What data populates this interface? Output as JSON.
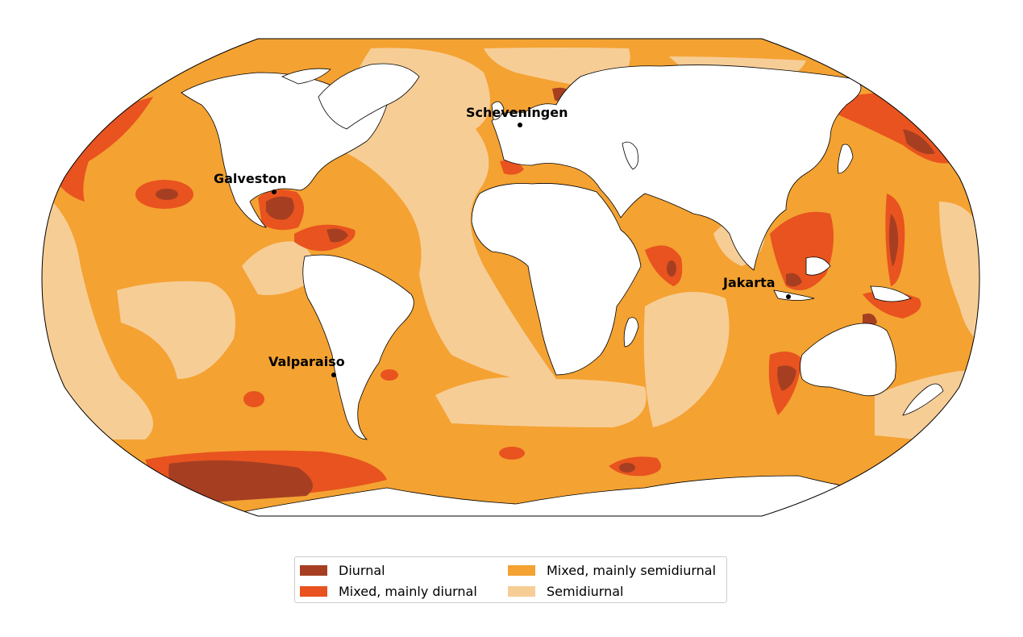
{
  "map": {
    "projection": "Robinson",
    "cities": [
      {
        "id": "galveston",
        "name": "Galveston"
      },
      {
        "id": "scheveningen",
        "name": "Scheveningen"
      },
      {
        "id": "jakarta",
        "name": "Jakarta"
      },
      {
        "id": "valparaiso",
        "name": "Valparaiso"
      }
    ]
  },
  "legend": {
    "items": [
      {
        "label": "Diurnal",
        "color": "#a63f22"
      },
      {
        "label": "Mixed, mainly semidiurnal",
        "color": "#f4a232"
      },
      {
        "label": "Mixed, mainly diurnal",
        "color": "#e8531f"
      },
      {
        "label": "Semidiurnal",
        "color": "#f7cd96"
      }
    ]
  }
}
